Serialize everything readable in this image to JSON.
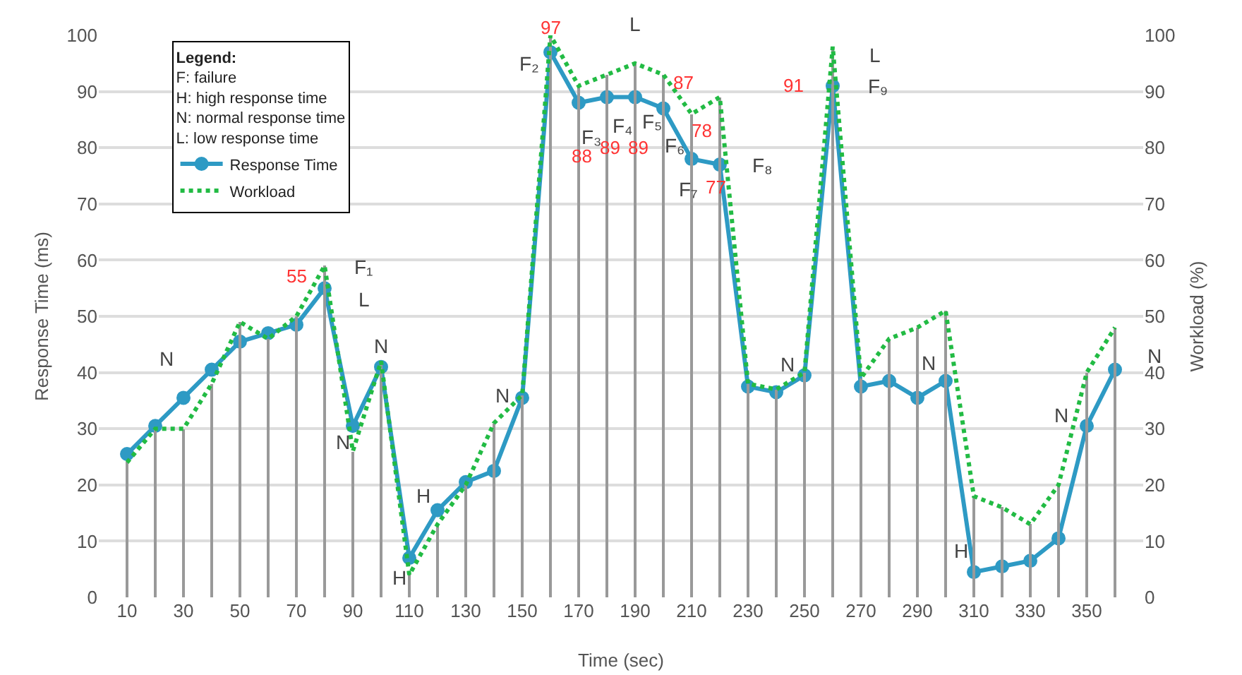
{
  "chart_data": {
    "type": "line",
    "xlabel": "Time (sec)",
    "ylabel": "Response Time (ms)",
    "y2label": "Workload (%)",
    "legend_title": "Legend:",
    "legend": "top left",
    "grid": "y",
    "x": [
      10,
      20,
      30,
      40,
      50,
      60,
      70,
      80,
      90,
      100,
      110,
      120,
      130,
      140,
      150,
      160,
      170,
      180,
      190,
      200,
      210,
      220,
      230,
      240,
      250,
      260,
      270,
      280,
      290,
      300,
      310,
      320,
      330,
      340,
      350,
      360
    ],
    "xlim": [
      0,
      370
    ],
    "xticks": [
      10,
      30,
      50,
      70,
      90,
      110,
      130,
      150,
      170,
      190,
      210,
      230,
      250,
      270,
      290,
      310,
      330,
      350
    ],
    "ylim": [
      0,
      100
    ],
    "yticks": [
      0,
      10,
      20,
      30,
      40,
      50,
      60,
      70,
      80,
      90,
      100
    ],
    "y2lim": [
      0,
      100
    ],
    "y2ticks": [
      0,
      10,
      20,
      30,
      40,
      50,
      60,
      70,
      80,
      90,
      100
    ],
    "series": [
      {
        "type": "bar",
        "axis": "y2",
        "color": "#999999",
        "values": [
          24,
          30,
          30,
          38,
          49,
          46,
          50,
          59,
          26,
          42,
          4,
          13,
          20,
          31,
          36,
          100,
          91,
          93,
          95,
          93,
          86,
          89,
          38,
          37,
          40,
          98,
          39,
          46,
          48,
          51,
          18,
          16,
          13,
          20,
          40,
          48
        ]
      },
      {
        "name": "Workload",
        "axis": "y2",
        "color": "#22bb44",
        "marker": "none",
        "line_style": "dotted",
        "values": [
          24,
          30,
          30,
          38,
          49,
          46,
          50,
          59,
          26,
          42,
          4,
          13,
          20,
          31,
          36,
          100,
          91,
          93,
          95,
          93,
          86,
          89,
          38,
          37,
          40,
          98,
          39,
          46,
          48,
          51,
          18,
          16,
          13,
          20,
          40,
          48
        ]
      },
      {
        "name": "Response Time",
        "color": "#2e9ac4",
        "marker": "circle",
        "line_style": "solid",
        "values": [
          25.5,
          30.5,
          35.5,
          40.5,
          45.5,
          47,
          48.5,
          55,
          30.5,
          41,
          7,
          15.5,
          20.5,
          22.5,
          35.5,
          97,
          88,
          89,
          89,
          87,
          78,
          77,
          37.5,
          36.5,
          39.5,
          91,
          37.5,
          38.5,
          35.5,
          38.5,
          4.5,
          5.5,
          6.5,
          10.5,
          30.5,
          40.5
        ],
        "value_labels": [
          null,
          null,
          null,
          null,
          null,
          null,
          null,
          "55",
          null,
          null,
          null,
          null,
          null,
          null,
          null,
          "97",
          "88",
          "89",
          "89",
          "87",
          "78",
          "77",
          null,
          null,
          null,
          "91",
          null,
          null,
          null,
          null,
          null,
          null,
          null,
          null,
          null,
          null
        ]
      }
    ],
    "annotations": [
      "F: failure",
      "H: high response time",
      "N: normal response time",
      "L: low response time",
      {
        "text": "N",
        "x": 30,
        "y": 35.5
      },
      {
        "text": "F₁",
        "x": 80,
        "y": 55
      },
      {
        "text": "L",
        "x": 80,
        "y": 55
      },
      {
        "text": "N",
        "x": 100,
        "y": 41
      },
      {
        "text": "N",
        "x": 90,
        "y": 30.5
      },
      {
        "text": "H",
        "x": 120,
        "y": 15.5
      },
      {
        "text": "H",
        "x": 110,
        "y": 7
      },
      {
        "text": "N",
        "x": 150,
        "y": 35.5
      },
      {
        "text": "F₂",
        "x": 160,
        "y": 97
      },
      {
        "text": "L",
        "x": 190,
        "y": 95
      },
      {
        "text": "F₃",
        "x": 170,
        "y": 88
      },
      {
        "text": "F₄",
        "x": 180,
        "y": 89
      },
      {
        "text": "F₅",
        "x": 190,
        "y": 89
      },
      {
        "text": "F₆",
        "x": 200,
        "y": 87
      },
      {
        "text": "F₇",
        "x": 210,
        "y": 78
      },
      {
        "text": "F₈",
        "x": 220,
        "y": 77
      },
      {
        "text": "N",
        "x": 240,
        "y": 36.5
      },
      {
        "text": "L",
        "x": 260,
        "y": 91
      },
      {
        "text": "F₉",
        "x": 260,
        "y": 91
      },
      {
        "text": "N",
        "x": 290,
        "y": 35.5
      },
      {
        "text": "H",
        "x": 310,
        "y": 4.5
      },
      {
        "text": "N",
        "x": 350,
        "y": 30.5
      },
      {
        "text": "N",
        "x": 360,
        "y": 40.5
      }
    ]
  }
}
